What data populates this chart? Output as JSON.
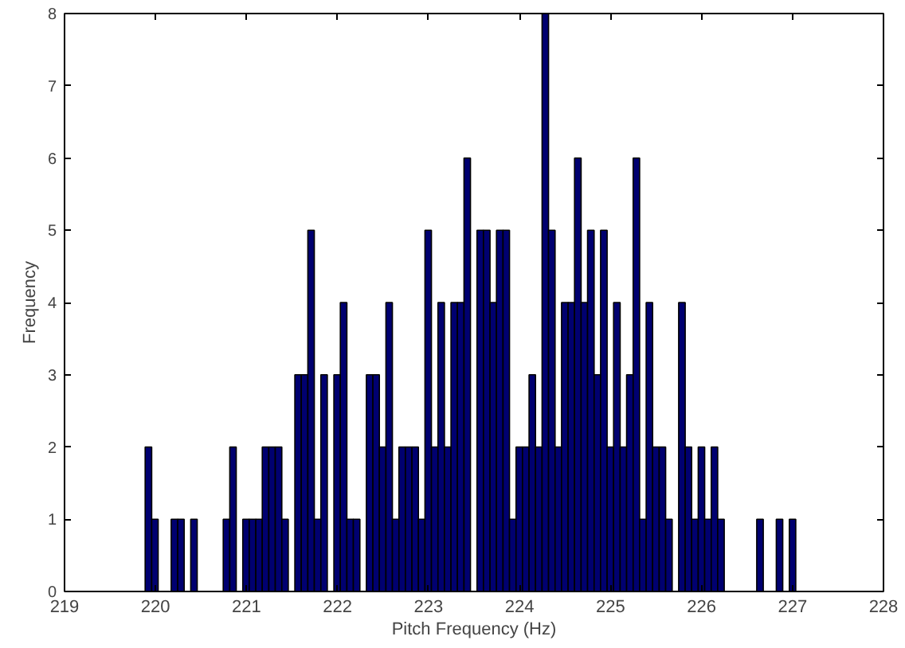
{
  "chart_data": {
    "type": "histogram",
    "xlabel": "Pitch Frequency (Hz)",
    "ylabel": "Frequency",
    "color": "#000070",
    "bins": [
      219.886,
      219.958,
      220.029,
      220.101,
      220.172,
      220.244,
      220.315,
      220.387,
      220.458,
      220.53,
      220.601,
      220.673,
      220.744,
      220.816,
      220.887,
      220.959,
      221.03,
      221.102,
      221.173,
      221.245,
      221.316,
      221.388,
      221.459,
      221.531,
      221.602,
      221.674,
      221.745,
      221.817,
      221.888,
      221.96,
      222.031,
      222.103,
      222.174,
      222.246,
      222.317,
      222.389,
      222.46,
      222.532,
      222.603,
      222.675,
      222.746,
      222.818,
      222.889,
      222.961,
      223.032,
      223.104,
      223.175,
      223.247,
      223.318,
      223.39,
      223.461,
      223.533,
      223.604,
      223.676,
      223.747,
      223.819,
      223.89,
      223.962,
      224.033,
      224.105,
      224.176,
      224.248,
      224.319,
      224.391,
      224.462,
      224.534,
      224.605,
      224.677,
      224.748,
      224.82,
      224.891,
      224.963,
      225.034,
      225.106,
      225.177,
      225.249,
      225.32,
      225.392,
      225.463,
      225.535,
      225.606,
      225.678,
      225.749,
      225.821,
      225.892,
      225.964,
      226.035,
      226.107,
      226.178,
      226.25,
      226.321,
      226.393,
      226.464,
      226.536,
      226.607,
      226.679,
      226.75,
      226.822,
      226.893,
      226.965,
      227.036
    ],
    "values": [
      2,
      1,
      0,
      0,
      1,
      1,
      0,
      1,
      0,
      0,
      0,
      0,
      1,
      2,
      0,
      1,
      1,
      1,
      2,
      2,
      2,
      1,
      0,
      3,
      3,
      5,
      1,
      3,
      0,
      3,
      4,
      1,
      1,
      0,
      3,
      3,
      2,
      4,
      1,
      2,
      2,
      2,
      1,
      5,
      2,
      4,
      2,
      4,
      4,
      6,
      0,
      5,
      5,
      4,
      5,
      5,
      1,
      2,
      2,
      3,
      2,
      8,
      5,
      2,
      4,
      4,
      6,
      4,
      5,
      3,
      5,
      2,
      4,
      2,
      3,
      6,
      1,
      4,
      2,
      2,
      1,
      0,
      4,
      2,
      1,
      2,
      1,
      2,
      1,
      0,
      0,
      0,
      0,
      0,
      1,
      0,
      0,
      1,
      0,
      1
    ],
    "xlim": [
      219,
      228
    ],
    "ylim": [
      0,
      8
    ],
    "xticks": [
      219,
      220,
      221,
      222,
      223,
      224,
      225,
      226,
      227,
      228
    ],
    "yticks": [
      0,
      1,
      2,
      3,
      4,
      5,
      6,
      7,
      8
    ],
    "grid": false
  }
}
